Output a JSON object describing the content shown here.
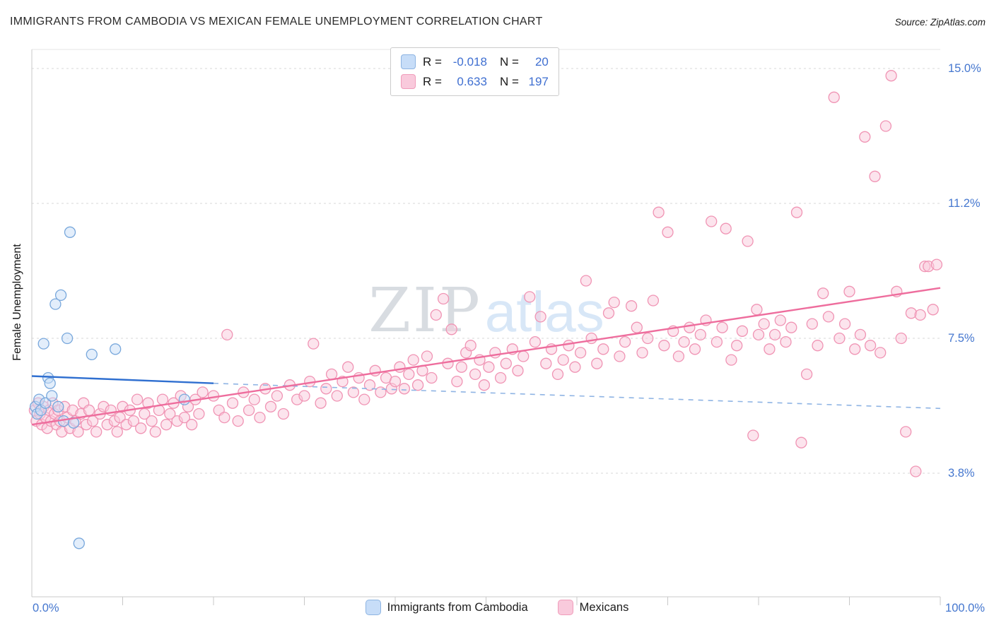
{
  "header": {
    "title": "IMMIGRANTS FROM CAMBODIA VS MEXICAN FEMALE UNEMPLOYMENT CORRELATION CHART",
    "source": "Source: ZipAtlas.com"
  },
  "legend_box": {
    "series": [
      {
        "r_label": "R =",
        "r_value": "-0.018",
        "n_label": "N =",
        "n_value": "20"
      },
      {
        "r_label": "R =",
        "r_value": "0.633",
        "n_label": "N =",
        "n_value": "197"
      }
    ]
  },
  "watermark": {
    "part1": "ZIP",
    "part2": "atlas"
  },
  "axes": {
    "y_label": "Female Unemployment",
    "y_ticks": [
      {
        "label": "15.0%",
        "value": 15.0
      },
      {
        "label": "11.2%",
        "value": 11.25
      },
      {
        "label": "7.5%",
        "value": 7.5
      },
      {
        "label": "3.8%",
        "value": 3.75
      }
    ],
    "x_min_label": "0.0%",
    "x_max_label": "100.0%"
  },
  "bottom_legend": [
    {
      "label": "Immigrants from Cambodia"
    },
    {
      "label": "Mexicans"
    }
  ],
  "chart_data": {
    "type": "scatter",
    "title": "IMMIGRANTS FROM CAMBODIA VS MEXICAN FEMALE UNEMPLOYMENT CORRELATION CHART",
    "xlabel": "",
    "ylabel": "Female Unemployment",
    "x_range_pct": [
      0,
      100
    ],
    "y_range_pct": [
      0,
      15.9
    ],
    "y_gridlines_pct": [
      15.0,
      11.25,
      7.5,
      3.75
    ],
    "y_tick_labels": [
      "15.0%",
      "11.2%",
      "7.5%",
      "3.8%"
    ],
    "x_tick_labels": [
      "0.0%",
      "100.0%"
    ],
    "grid": "dashed-horizontal",
    "legend_position": "bottom-center",
    "series": [
      {
        "name": "Immigrants from Cambodia",
        "r": -0.018,
        "n": 20,
        "color": "#79a8dc",
        "fill": "#c7ddf8",
        "points": [
          [
            0.4,
            5.6
          ],
          [
            0.6,
            5.4
          ],
          [
            0.8,
            5.8
          ],
          [
            1.0,
            5.5
          ],
          [
            1.3,
            7.35
          ],
          [
            1.5,
            5.7
          ],
          [
            1.8,
            6.4
          ],
          [
            2.0,
            6.25
          ],
          [
            2.2,
            5.9
          ],
          [
            2.6,
            8.45
          ],
          [
            2.9,
            5.6
          ],
          [
            3.2,
            8.7
          ],
          [
            3.5,
            5.2
          ],
          [
            3.9,
            7.5
          ],
          [
            4.2,
            10.45
          ],
          [
            4.6,
            5.15
          ],
          [
            5.2,
            1.8
          ],
          [
            6.6,
            7.05
          ],
          [
            9.2,
            7.2
          ],
          [
            16.8,
            5.8
          ]
        ]
      },
      {
        "name": "Mexicans",
        "r": 0.633,
        "n": 197,
        "color": "#f094b4",
        "fill": "#f9cadc",
        "points": [
          [
            0.3,
            5.5
          ],
          [
            0.5,
            5.2
          ],
          [
            0.7,
            5.7
          ],
          [
            0.9,
            5.4
          ],
          [
            1.1,
            5.1
          ],
          [
            1.3,
            5.6
          ],
          [
            1.5,
            5.3
          ],
          [
            1.7,
            5.0
          ],
          [
            1.9,
            5.5
          ],
          [
            2.1,
            5.2
          ],
          [
            2.3,
            5.7
          ],
          [
            2.5,
            5.4
          ],
          [
            2.7,
            5.1
          ],
          [
            2.9,
            5.5
          ],
          [
            3.1,
            5.2
          ],
          [
            3.3,
            4.9
          ],
          [
            3.6,
            5.6
          ],
          [
            3.9,
            5.3
          ],
          [
            4.2,
            5.0
          ],
          [
            4.5,
            5.5
          ],
          [
            4.8,
            5.2
          ],
          [
            5.1,
            4.9
          ],
          [
            5.4,
            5.4
          ],
          [
            5.7,
            5.7
          ],
          [
            6.0,
            5.1
          ],
          [
            6.3,
            5.5
          ],
          [
            6.7,
            5.2
          ],
          [
            7.1,
            4.9
          ],
          [
            7.5,
            5.4
          ],
          [
            7.9,
            5.6
          ],
          [
            8.3,
            5.1
          ],
          [
            8.7,
            5.5
          ],
          [
            9.1,
            5.2
          ],
          [
            9.4,
            4.9
          ],
          [
            9.7,
            5.3
          ],
          [
            10.0,
            5.6
          ],
          [
            10.4,
            5.1
          ],
          [
            10.8,
            5.5
          ],
          [
            11.2,
            5.2
          ],
          [
            11.6,
            5.8
          ],
          [
            12.0,
            5.0
          ],
          [
            12.4,
            5.4
          ],
          [
            12.8,
            5.7
          ],
          [
            13.2,
            5.2
          ],
          [
            13.6,
            4.9
          ],
          [
            14.0,
            5.5
          ],
          [
            14.4,
            5.8
          ],
          [
            14.8,
            5.1
          ],
          [
            15.2,
            5.4
          ],
          [
            15.6,
            5.7
          ],
          [
            16.0,
            5.2
          ],
          [
            16.4,
            5.9
          ],
          [
            16.8,
            5.3
          ],
          [
            17.2,
            5.6
          ],
          [
            17.6,
            5.1
          ],
          [
            18.0,
            5.8
          ],
          [
            18.4,
            5.4
          ],
          [
            18.8,
            6.0
          ],
          [
            20.0,
            5.9
          ],
          [
            20.6,
            5.5
          ],
          [
            21.2,
            5.3
          ],
          [
            21.5,
            7.6
          ],
          [
            22.1,
            5.7
          ],
          [
            22.7,
            5.2
          ],
          [
            23.3,
            6.0
          ],
          [
            23.9,
            5.5
          ],
          [
            24.5,
            5.8
          ],
          [
            25.1,
            5.3
          ],
          [
            25.7,
            6.1
          ],
          [
            26.3,
            5.6
          ],
          [
            27.0,
            5.9
          ],
          [
            27.7,
            5.4
          ],
          [
            28.4,
            6.2
          ],
          [
            29.2,
            5.8
          ],
          [
            30.0,
            5.9
          ],
          [
            30.6,
            6.3
          ],
          [
            31.0,
            7.35
          ],
          [
            31.8,
            5.7
          ],
          [
            32.4,
            6.1
          ],
          [
            33.0,
            6.5
          ],
          [
            33.6,
            5.9
          ],
          [
            34.2,
            6.3
          ],
          [
            34.8,
            6.7
          ],
          [
            35.4,
            6.0
          ],
          [
            36.0,
            6.4
          ],
          [
            36.6,
            5.8
          ],
          [
            37.2,
            6.2
          ],
          [
            37.8,
            6.6
          ],
          [
            38.4,
            6.0
          ],
          [
            39.0,
            6.4
          ],
          [
            39.6,
            6.1
          ],
          [
            40.0,
            6.3
          ],
          [
            40.5,
            6.7
          ],
          [
            41.0,
            6.1
          ],
          [
            41.5,
            6.5
          ],
          [
            42.0,
            6.9
          ],
          [
            42.5,
            6.2
          ],
          [
            43.0,
            6.6
          ],
          [
            43.5,
            7.0
          ],
          [
            44.0,
            6.4
          ],
          [
            44.5,
            8.15
          ],
          [
            45.3,
            8.6
          ],
          [
            45.8,
            6.8
          ],
          [
            46.2,
            7.75
          ],
          [
            46.8,
            6.3
          ],
          [
            47.3,
            6.7
          ],
          [
            47.8,
            7.1
          ],
          [
            48.3,
            7.3
          ],
          [
            48.8,
            6.5
          ],
          [
            49.3,
            6.9
          ],
          [
            49.8,
            6.2
          ],
          [
            50.3,
            6.7
          ],
          [
            51.0,
            7.1
          ],
          [
            51.6,
            6.4
          ],
          [
            52.2,
            6.8
          ],
          [
            52.9,
            7.2
          ],
          [
            53.5,
            6.6
          ],
          [
            54.1,
            7.0
          ],
          [
            54.8,
            8.65
          ],
          [
            55.4,
            7.4
          ],
          [
            56.0,
            8.1
          ],
          [
            56.6,
            6.8
          ],
          [
            57.2,
            7.2
          ],
          [
            57.9,
            6.5
          ],
          [
            58.5,
            6.9
          ],
          [
            59.1,
            7.3
          ],
          [
            59.8,
            6.7
          ],
          [
            60.4,
            7.1
          ],
          [
            61.0,
            9.1
          ],
          [
            61.6,
            7.5
          ],
          [
            62.2,
            6.8
          ],
          [
            62.9,
            7.2
          ],
          [
            63.5,
            8.2
          ],
          [
            64.1,
            8.5
          ],
          [
            64.7,
            7.0
          ],
          [
            65.3,
            7.4
          ],
          [
            66.0,
            8.4
          ],
          [
            66.6,
            7.8
          ],
          [
            67.2,
            7.1
          ],
          [
            67.8,
            7.5
          ],
          [
            68.4,
            8.55
          ],
          [
            69.0,
            11.0
          ],
          [
            69.6,
            7.3
          ],
          [
            70.0,
            10.45
          ],
          [
            70.6,
            7.7
          ],
          [
            71.2,
            7.0
          ],
          [
            71.8,
            7.4
          ],
          [
            72.4,
            7.8
          ],
          [
            73.0,
            7.2
          ],
          [
            73.6,
            7.6
          ],
          [
            74.2,
            8.0
          ],
          [
            74.8,
            10.75
          ],
          [
            75.4,
            7.4
          ],
          [
            76.0,
            7.8
          ],
          [
            76.4,
            10.55
          ],
          [
            77.0,
            6.9
          ],
          [
            77.6,
            7.3
          ],
          [
            78.2,
            7.7
          ],
          [
            78.8,
            10.2
          ],
          [
            79.4,
            4.8
          ],
          [
            79.8,
            8.3
          ],
          [
            80.0,
            7.6
          ],
          [
            80.6,
            7.9
          ],
          [
            81.2,
            7.2
          ],
          [
            81.8,
            7.6
          ],
          [
            82.4,
            8.0
          ],
          [
            83.0,
            7.4
          ],
          [
            83.6,
            7.8
          ],
          [
            84.2,
            11.0
          ],
          [
            84.7,
            4.6
          ],
          [
            85.3,
            6.5
          ],
          [
            85.9,
            7.9
          ],
          [
            86.5,
            7.3
          ],
          [
            87.1,
            8.75
          ],
          [
            87.7,
            8.1
          ],
          [
            88.3,
            14.2
          ],
          [
            88.9,
            7.5
          ],
          [
            89.5,
            7.9
          ],
          [
            90.0,
            8.8
          ],
          [
            90.6,
            7.2
          ],
          [
            91.2,
            7.6
          ],
          [
            91.7,
            13.1
          ],
          [
            92.3,
            7.3
          ],
          [
            92.8,
            12.0
          ],
          [
            93.4,
            7.1
          ],
          [
            94.0,
            13.4
          ],
          [
            94.6,
            14.8
          ],
          [
            95.2,
            8.8
          ],
          [
            95.7,
            7.5
          ],
          [
            96.2,
            4.9
          ],
          [
            96.8,
            8.2
          ],
          [
            97.3,
            3.8
          ],
          [
            97.8,
            8.15
          ],
          [
            98.3,
            9.5
          ],
          [
            98.7,
            9.5
          ],
          [
            99.2,
            8.3
          ],
          [
            99.6,
            9.55
          ]
        ]
      }
    ],
    "trend_lines": [
      {
        "series": "Immigrants from Cambodia",
        "style": "dashed",
        "from": [
          20,
          6.25
        ],
        "to": [
          100,
          5.55
        ],
        "color": "#8fb4e4",
        "width": 1.6
      },
      {
        "series": "Mexicans",
        "style": "solid",
        "from": [
          0,
          5.1
        ],
        "to": [
          100,
          8.9
        ],
        "color": "#ee6d9d",
        "width": 2.4
      },
      {
        "series": "Immigrants from Cambodia",
        "style": "solid",
        "from": [
          0,
          6.45
        ],
        "to": [
          20,
          6.25
        ],
        "color": "#2f6fd0",
        "width": 2.4
      }
    ]
  }
}
